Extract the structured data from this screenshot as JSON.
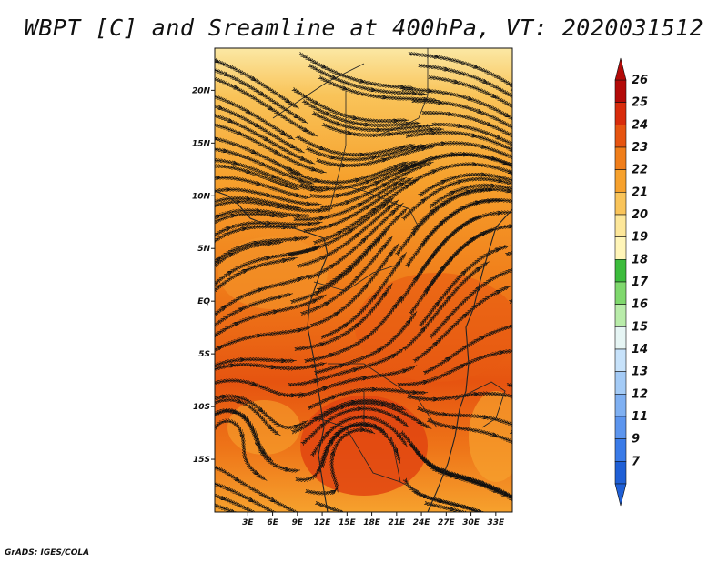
{
  "title": "WBPT [C] and Sreamline at 400hPa, VT: 2020031512",
  "credit": "GrADS: IGES/COLA",
  "map": {
    "variable": "WBPT",
    "unit": "C",
    "level": "400hPa",
    "valid_time": "2020031512",
    "lon_range": [
      -1,
      35
    ],
    "lat_range": [
      -20,
      24
    ],
    "lon_ticks": [
      "3E",
      "6E",
      "9E",
      "12E",
      "15E",
      "18E",
      "21E",
      "24E",
      "27E",
      "30E",
      "33E"
    ],
    "lat_ticks": [
      "20N",
      "15N",
      "10N",
      "5N",
      "EQ",
      "5S",
      "10S",
      "15S"
    ]
  },
  "colorbar": {
    "labels": [
      "7",
      "9",
      "11",
      "12",
      "13",
      "14",
      "15",
      "16",
      "17",
      "18",
      "19",
      "20",
      "21",
      "22",
      "23",
      "24",
      "25",
      "26"
    ],
    "colors": [
      "#1f5fd6",
      "#3a7be8",
      "#5c95ee",
      "#7fb0f2",
      "#a4cbf6",
      "#c7e2fa",
      "#e6f5f4",
      "#b9ecaa",
      "#7fd86d",
      "#3cbc3c",
      "#fff5b8",
      "#fde79a",
      "#f9c45a",
      "#f6a12d",
      "#f07e1a",
      "#e65410",
      "#d82c0c",
      "#b30a08"
    ]
  }
}
